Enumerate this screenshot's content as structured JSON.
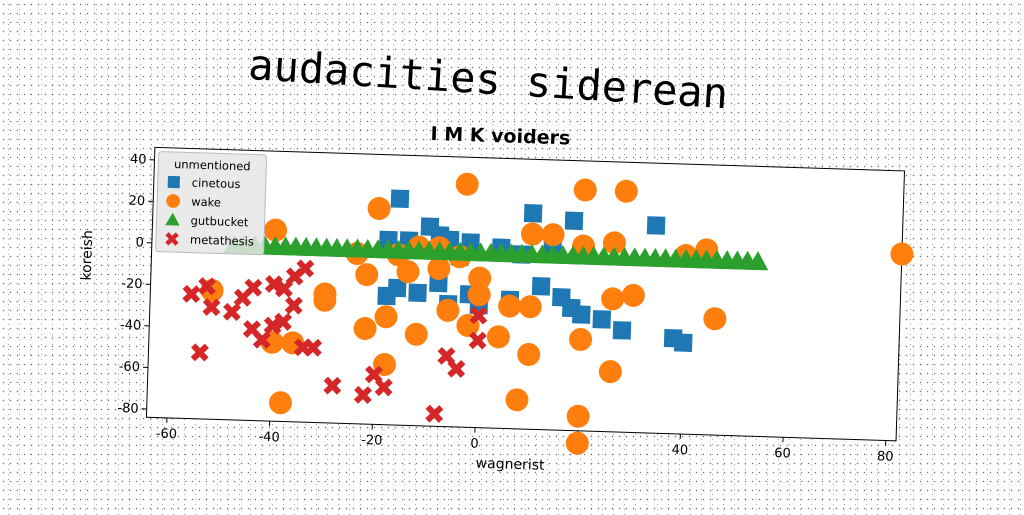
{
  "page_title": "audacities siderean",
  "chart_data": {
    "type": "scatter",
    "title": "I M K voiders",
    "xlabel": "wagnerist",
    "ylabel": "koreish",
    "xlim": [
      -64,
      82
    ],
    "ylim": [
      -84,
      46
    ],
    "xticks": [
      -60,
      -40,
      -20,
      0,
      20,
      40,
      60,
      80
    ],
    "yticks": [
      40,
      20,
      0,
      -20,
      -40,
      -60,
      -80
    ],
    "grid": false,
    "legend": {
      "title": "unmentioned",
      "placement": "top-left"
    },
    "series": [
      {
        "name": "cinetous",
        "marker": "square",
        "color": "#1f77b4",
        "points": [
          [
            -16,
            25
          ],
          [
            -18,
            5
          ],
          [
            -14,
            5
          ],
          [
            -10,
            12
          ],
          [
            -8,
            8
          ],
          [
            -6,
            6
          ],
          [
            -2,
            5
          ],
          [
            4,
            3
          ],
          [
            10,
            20
          ],
          [
            14,
            5
          ],
          [
            18,
            17
          ],
          [
            -18,
            -22
          ],
          [
            -16,
            -18
          ],
          [
            -12,
            -20
          ],
          [
            -8,
            -15
          ],
          [
            -6,
            -25
          ],
          [
            -2,
            -20
          ],
          [
            0,
            -25
          ],
          [
            6,
            -22
          ],
          [
            12,
            -15
          ],
          [
            16,
            -20
          ],
          [
            18,
            -25
          ],
          [
            20,
            -28
          ],
          [
            24,
            -30
          ],
          [
            28,
            -35
          ],
          [
            34,
            16
          ],
          [
            38,
            -38
          ],
          [
            40,
            -40
          ],
          [
            -4,
            -2
          ],
          [
            8,
            0
          ]
        ]
      },
      {
        "name": "wake",
        "marker": "circle",
        "color": "#ff7f0e",
        "points": [
          [
            -20,
            20
          ],
          [
            -3,
            33
          ],
          [
            20,
            32
          ],
          [
            28,
            32
          ],
          [
            -40,
            8
          ],
          [
            -24,
            -2
          ],
          [
            -16,
            -2
          ],
          [
            -12,
            2
          ],
          [
            -8,
            2
          ],
          [
            -4,
            -2
          ],
          [
            10,
            10
          ],
          [
            14,
            10
          ],
          [
            20,
            5
          ],
          [
            26,
            7
          ],
          [
            40,
            2
          ],
          [
            44,
            5
          ],
          [
            -22,
            -12
          ],
          [
            -14,
            -10
          ],
          [
            -8,
            -8
          ],
          [
            0,
            -12
          ],
          [
            -52,
            -22
          ],
          [
            -30,
            -25
          ],
          [
            -22,
            -38
          ],
          [
            -18,
            -32
          ],
          [
            -12,
            -40
          ],
          [
            -6,
            -28
          ],
          [
            -2,
            -35
          ],
          [
            4,
            -40
          ],
          [
            6,
            -25
          ],
          [
            10,
            -25
          ],
          [
            20,
            -40
          ],
          [
            26,
            -20
          ],
          [
            30,
            -18
          ],
          [
            46,
            -28
          ],
          [
            -40,
            -46
          ],
          [
            -18,
            -55
          ],
          [
            10,
            -48
          ],
          [
            26,
            -55
          ],
          [
            8,
            -70
          ],
          [
            -38,
            -75
          ],
          [
            20,
            -77
          ],
          [
            20,
            -90
          ],
          [
            -30,
            -22
          ],
          [
            82,
            6
          ],
          [
            0,
            -20
          ],
          [
            -36,
            -46
          ]
        ]
      },
      {
        "name": "gutbucket",
        "marker": "triangle",
        "color": "#2ca02c",
        "points": [
          [
            -48,
            0
          ],
          [
            -44,
            0
          ],
          [
            -40,
            0
          ],
          [
            -36,
            0
          ],
          [
            -32,
            0
          ],
          [
            -28,
            0
          ],
          [
            -24,
            0
          ],
          [
            -20,
            0
          ],
          [
            -16,
            0
          ],
          [
            -12,
            0
          ],
          [
            -8,
            0
          ],
          [
            -4,
            0
          ],
          [
            0,
            0
          ],
          [
            4,
            0
          ],
          [
            8,
            0
          ],
          [
            12,
            0
          ],
          [
            16,
            0
          ],
          [
            20,
            0
          ],
          [
            24,
            0
          ],
          [
            28,
            0
          ],
          [
            32,
            0
          ],
          [
            36,
            0
          ],
          [
            40,
            0
          ],
          [
            44,
            0
          ],
          [
            48,
            0
          ],
          [
            52,
            0
          ],
          [
            -46,
            0
          ],
          [
            -42,
            0
          ],
          [
            -38,
            0
          ],
          [
            -34,
            0
          ],
          [
            -30,
            0
          ],
          [
            -26,
            0
          ],
          [
            -22,
            0
          ],
          [
            -18,
            0
          ],
          [
            -14,
            0
          ],
          [
            -10,
            0
          ],
          [
            -6,
            0
          ],
          [
            -2,
            0
          ],
          [
            2,
            0
          ],
          [
            6,
            0
          ],
          [
            10,
            0
          ],
          [
            14,
            0
          ],
          [
            18,
            0
          ],
          [
            22,
            0
          ],
          [
            26,
            0
          ],
          [
            30,
            0
          ],
          [
            34,
            0
          ],
          [
            38,
            0
          ],
          [
            42,
            0
          ],
          [
            46,
            0
          ],
          [
            50,
            0
          ],
          [
            54,
            0
          ]
        ]
      },
      {
        "name": "metathesis",
        "marker": "x",
        "color": "#d62728",
        "points": [
          [
            -56,
            -24
          ],
          [
            -53,
            -20
          ],
          [
            -52,
            -30
          ],
          [
            -48,
            -32
          ],
          [
            -46,
            -25
          ],
          [
            -44,
            -40
          ],
          [
            -42,
            -45
          ],
          [
            -40,
            -38
          ],
          [
            -40,
            -18
          ],
          [
            -38,
            -36
          ],
          [
            -36,
            -28
          ],
          [
            -36,
            -14
          ],
          [
            -34,
            -10
          ],
          [
            -34,
            -48
          ],
          [
            -32,
            -48
          ],
          [
            -44,
            -20
          ],
          [
            -28,
            -66
          ],
          [
            -20,
            -60
          ],
          [
            -22,
            -70
          ],
          [
            -18,
            -66
          ],
          [
            -8,
            -78
          ],
          [
            -6,
            -50
          ],
          [
            -4,
            -56
          ],
          [
            0,
            -30
          ],
          [
            0,
            -42
          ],
          [
            -54,
            -52
          ],
          [
            -38,
            -20
          ]
        ]
      }
    ]
  }
}
